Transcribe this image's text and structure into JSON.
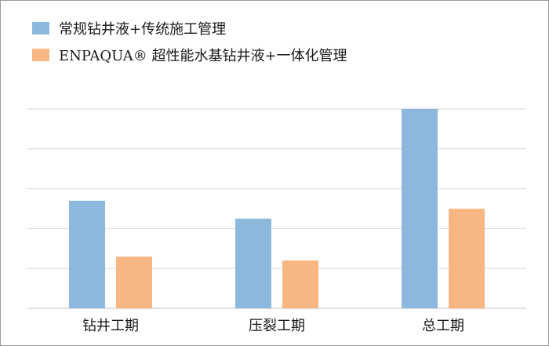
{
  "chart_data": {
    "type": "bar",
    "title": "",
    "xlabel": "",
    "ylabel": "",
    "grid": true,
    "legend_position": "top-left",
    "categories": [
      "钻井工期",
      "压裂工期",
      "总工期"
    ],
    "series": [
      {
        "name": "常规钻井液+传统施工管理",
        "color": "#8db8de",
        "values": [
          2.7,
          2.25,
          5.0
        ]
      },
      {
        "name": "ENPAQUA® 超性能水基钻井液+一体化管理",
        "color": "#f8b782",
        "values": [
          1.3,
          1.2,
          2.5
        ]
      }
    ],
    "ylim": [
      0,
      5.0
    ],
    "y_gridlines": [
      0,
      1,
      2,
      3,
      4,
      5
    ]
  }
}
